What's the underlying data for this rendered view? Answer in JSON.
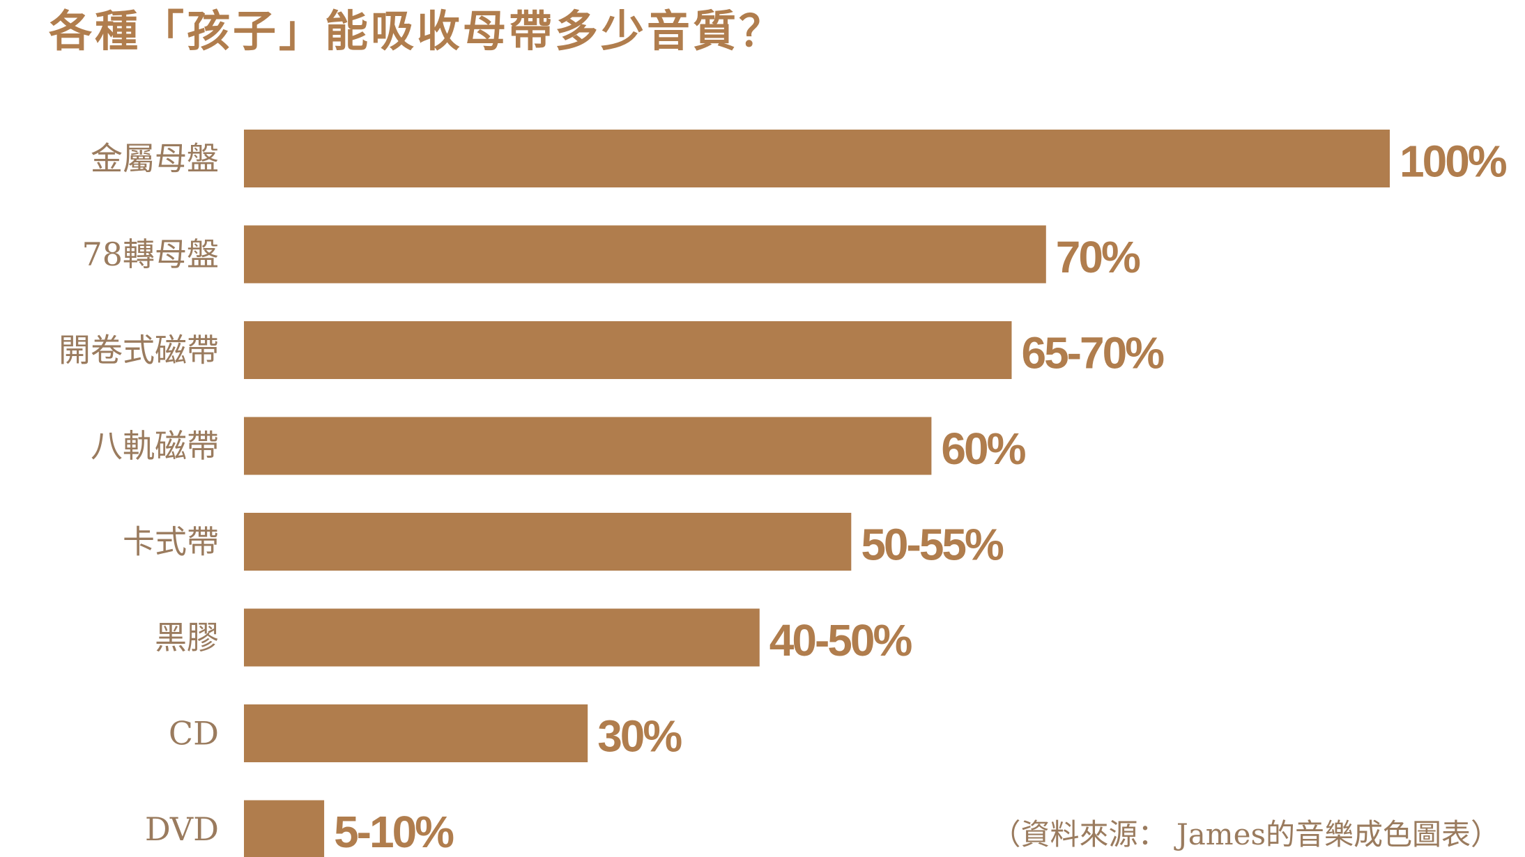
{
  "colors": {
    "accent": "#b07d4d",
    "label": "#9a7b5e"
  },
  "chart_data": {
    "type": "bar",
    "orientation": "horizontal",
    "title": "各種「孩子」能吸收母帶多少音質？",
    "categories": [
      "金屬母盤",
      "78轉母盤",
      "開卷式磁帶",
      "八軌磁帶",
      "卡式帶",
      "黑膠",
      "CD",
      "DVD"
    ],
    "values": [
      100,
      70,
      67,
      60,
      53,
      45,
      30,
      7
    ],
    "value_labels": [
      "100%",
      "70%",
      "65-70%",
      "60%",
      "50-55%",
      "40-50%",
      "30%",
      "5-10%"
    ],
    "xlim": [
      0,
      100
    ],
    "grid": false,
    "source": "（資料來源： James的音樂成色圖表）"
  }
}
